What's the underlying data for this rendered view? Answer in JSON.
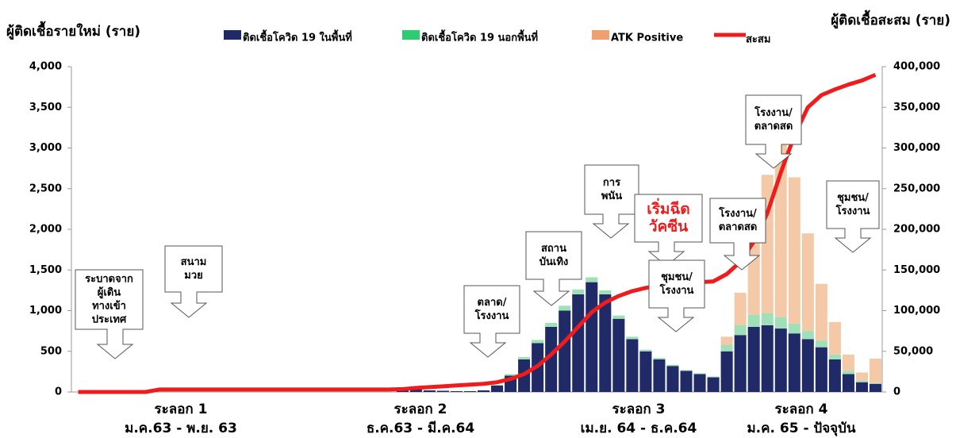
{
  "chart_data": {
    "type": "stacked-bar-line",
    "y_title": "ผู้ติดเชื้อรายใหม่ (ราย)",
    "y2_title": "ผู้ติดเชื้อสะสม (ราย)",
    "categories": [
      null,
      null,
      null,
      null,
      null,
      null,
      null,
      null,
      null,
      null,
      null,
      null,
      null,
      null,
      null,
      null,
      null,
      null,
      null,
      null,
      null,
      null,
      null,
      null,
      null,
      null,
      null,
      null,
      null,
      null,
      null,
      null,
      null,
      null,
      null,
      null,
      null,
      null,
      null,
      null,
      null,
      null,
      null,
      null,
      null,
      null,
      null,
      null,
      null,
      null,
      null,
      null,
      null,
      null,
      null,
      null,
      null,
      null,
      null,
      null
    ],
    "series": [
      {
        "name": "ติดเชื้อโควิด 19 ในพื้นที่",
        "color": "#1f2a66",
        "values": [
          0,
          0,
          0,
          0,
          20,
          10,
          0,
          0,
          0,
          0,
          0,
          0,
          0,
          0,
          0,
          0,
          0,
          0,
          0,
          0,
          0,
          0,
          0,
          0,
          30,
          40,
          20,
          15,
          10,
          10,
          20,
          80,
          200,
          400,
          600,
          800,
          1000,
          1200,
          1350,
          1200,
          900,
          650,
          500,
          400,
          320,
          260,
          220,
          180,
          500,
          700,
          800,
          820,
          780,
          720,
          650,
          550,
          400,
          220,
          120,
          100
        ]
      },
      {
        "name": "ติดเชื้อโควิด 19 นอกพื้นที่",
        "color": "#9fe0b8",
        "values": [
          0,
          0,
          0,
          0,
          0,
          0,
          0,
          0,
          0,
          0,
          0,
          0,
          0,
          0,
          0,
          0,
          0,
          0,
          0,
          0,
          0,
          0,
          0,
          0,
          0,
          0,
          0,
          0,
          0,
          0,
          0,
          10,
          20,
          30,
          40,
          50,
          60,
          60,
          60,
          50,
          40,
          30,
          20,
          20,
          15,
          10,
          10,
          10,
          80,
          120,
          150,
          150,
          140,
          120,
          100,
          80,
          60,
          40,
          20,
          10
        ]
      },
      {
        "name": "ATK Positive",
        "color": "#f3c9a8",
        "values": [
          0,
          0,
          0,
          0,
          0,
          0,
          0,
          0,
          0,
          0,
          0,
          0,
          0,
          0,
          0,
          0,
          0,
          0,
          0,
          0,
          0,
          0,
          0,
          0,
          0,
          0,
          0,
          0,
          0,
          0,
          0,
          0,
          0,
          0,
          0,
          0,
          0,
          0,
          0,
          0,
          0,
          0,
          0,
          0,
          0,
          0,
          0,
          0,
          100,
          400,
          1000,
          1700,
          2200,
          1800,
          1200,
          700,
          400,
          200,
          100,
          300
        ]
      },
      {
        "name": "สะสม",
        "color": "#ee1c1c",
        "axis": "y2",
        "values": [
          0,
          0,
          0,
          0,
          0,
          0,
          3000,
          3000,
          3000,
          3000,
          3000,
          3000,
          3000,
          3000,
          3000,
          3000,
          3000,
          3000,
          3000,
          3000,
          3000,
          3000,
          3000,
          3000,
          3500,
          5000,
          6000,
          7000,
          8000,
          9000,
          10000,
          12000,
          16000,
          22000,
          32000,
          46000,
          62000,
          80000,
          98000,
          110000,
          118000,
          124000,
          128000,
          131000,
          133000,
          134000,
          135000,
          136000,
          145000,
          160000,
          185000,
          220000,
          270000,
          315000,
          350000,
          365000,
          372000,
          378000,
          383000,
          390000
        ]
      }
    ],
    "ylim": [
      0,
      4000
    ],
    "yticks": [
      0,
      500,
      {
        "value": 1000,
        "label": "1,000"
      },
      {
        "value": 1500,
        "label": "1,500"
      },
      {
        "value": 2000,
        "label": "2,000"
      },
      {
        "value": 2500,
        "label": "2,500"
      },
      {
        "value": 3000,
        "label": "3,000"
      },
      {
        "value": 3500,
        "label": "3,500"
      },
      {
        "value": 4000,
        "label": "4,000"
      }
    ],
    "y2lim": [
      0,
      400000
    ],
    "y2ticks": [
      0,
      {
        "value": 50000,
        "label": "50,000"
      },
      {
        "value": 100000,
        "label": "100,000"
      },
      {
        "value": 150000,
        "label": "150,000"
      },
      {
        "value": 200000,
        "label": "200,000"
      },
      {
        "value": 250000,
        "label": "250,000"
      },
      {
        "value": 300000,
        "label": "300,000"
      },
      {
        "value": 350000,
        "label": "350,000"
      },
      {
        "value": 400000,
        "label": "400,000"
      }
    ],
    "waves": [
      {
        "name": "ระลอก 1",
        "period": "ม.ค.63 - พ.ย. 63"
      },
      {
        "name": "ระลอก 2",
        "period": "ธ.ค.63 - มี.ค.64"
      },
      {
        "name": "ระลอก 3",
        "period": "เม.ย. 64 - ธ.ค.64"
      },
      {
        "name": "ระลอก 4",
        "period": "ม.ค. 65 - ปัจจุบัน"
      }
    ],
    "annotations": [
      {
        "lines": [
          "ระบาดจาก",
          "ผู้เดิน",
          "ทางเข้า",
          "ประเทศ"
        ]
      },
      {
        "lines": [
          "สนาม",
          "มวย"
        ]
      },
      {
        "lines": [
          "ตลาด/",
          "โรงงาน"
        ]
      },
      {
        "lines": [
          "สถาน",
          "บันเทิง"
        ]
      },
      {
        "lines": [
          "การ",
          "พนัน"
        ]
      },
      {
        "lines": [
          "เริ่มฉีด",
          "วัคซีน"
        ],
        "color": "#ee1c1c"
      },
      {
        "lines": [
          "ชุมชน/",
          "โรงงาน"
        ]
      },
      {
        "lines": [
          "โรงงาน/",
          "ตลาดสด"
        ]
      },
      {
        "lines": [
          "โรงงาน/",
          "ตลาดสด"
        ]
      },
      {
        "lines": [
          "ชุมชน/",
          "โรงงาน"
        ]
      }
    ]
  }
}
